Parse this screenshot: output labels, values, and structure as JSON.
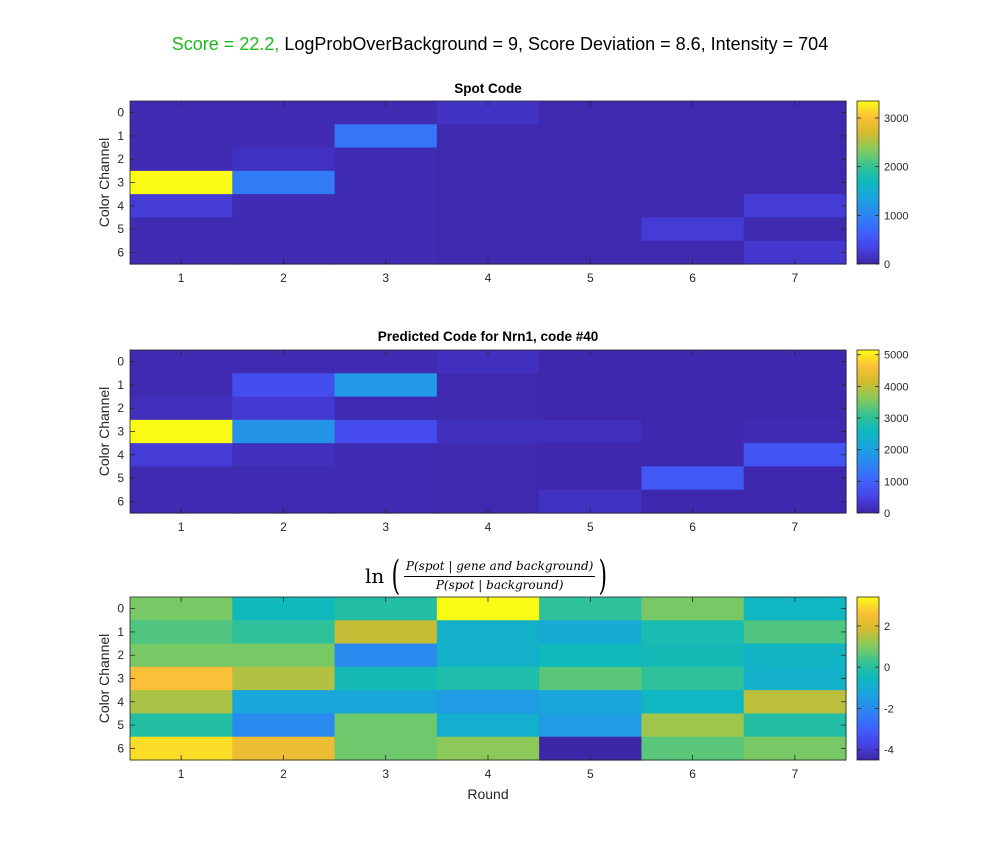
{
  "figure": {
    "score_text": "Score = 22.2,",
    "rest_text": "LogProbOverBackground = 9, Score Deviation = 8.6, Intensity = 704",
    "score_color": "#1db91d",
    "formula": {
      "prefix": "ln",
      "numerator": "P(spot | gene and background)",
      "denominator": "P(spot | background)"
    }
  },
  "chart_data": [
    {
      "type": "heatmap",
      "title": "Spot Code",
      "ylabel": "Color Channel",
      "xlabel": "",
      "x_ticks": [
        "1",
        "2",
        "3",
        "4",
        "5",
        "6",
        "7"
      ],
      "y_ticks": [
        "0",
        "1",
        "2",
        "3",
        "4",
        "5",
        "6"
      ],
      "colormap": "parula",
      "clim": [
        0,
        3350
      ],
      "colorbar_ticks": [
        0,
        1000,
        2000,
        3000
      ],
      "values": [
        [
          60,
          60,
          60,
          150,
          30,
          30,
          30
        ],
        [
          60,
          60,
          850,
          30,
          30,
          30,
          30
        ],
        [
          60,
          130,
          60,
          30,
          30,
          30,
          30
        ],
        [
          3350,
          900,
          60,
          30,
          30,
          30,
          30
        ],
        [
          250,
          60,
          60,
          30,
          30,
          30,
          250
        ],
        [
          60,
          60,
          60,
          30,
          30,
          250,
          30
        ],
        [
          60,
          60,
          60,
          30,
          30,
          30,
          200
        ]
      ]
    },
    {
      "type": "heatmap",
      "title": "Predicted Code for Nrn1, code #40",
      "ylabel": "Color Channel",
      "xlabel": "",
      "x_ticks": [
        "1",
        "2",
        "3",
        "4",
        "5",
        "6",
        "7"
      ],
      "y_ticks": [
        "0",
        "1",
        "2",
        "3",
        "4",
        "5",
        "6"
      ],
      "colormap": "parula",
      "clim": [
        0,
        5150
      ],
      "colorbar_ticks": [
        0,
        1000,
        2000,
        3000,
        4000,
        5000
      ],
      "values": [
        [
          80,
          80,
          80,
          180,
          40,
          40,
          40
        ],
        [
          80,
          700,
          1900,
          60,
          40,
          40,
          40
        ],
        [
          150,
          350,
          80,
          60,
          40,
          40,
          40
        ],
        [
          5150,
          1800,
          650,
          180,
          160,
          40,
          80
        ],
        [
          380,
          170,
          80,
          60,
          40,
          40,
          800
        ],
        [
          80,
          80,
          80,
          60,
          40,
          850,
          40
        ],
        [
          80,
          80,
          80,
          60,
          200,
          40,
          40
        ]
      ]
    },
    {
      "type": "heatmap",
      "title": "ln( P(spot | gene and background) / P(spot | background) )",
      "ylabel": "Color Channel",
      "xlabel": "Round",
      "x_ticks": [
        "1",
        "2",
        "3",
        "4",
        "5",
        "6",
        "7"
      ],
      "y_ticks": [
        "0",
        "1",
        "2",
        "3",
        "4",
        "5",
        "6"
      ],
      "colormap": "parula",
      "clim": [
        -4.5,
        3.4
      ],
      "colorbar_ticks": [
        -4,
        -2,
        0,
        2
      ],
      "values": [
        [
          0.9,
          -0.5,
          -0.1,
          3.4,
          0.1,
          0.9,
          -0.6
        ],
        [
          0.5,
          0.1,
          1.7,
          -0.8,
          -1.0,
          -0.3,
          0.5
        ],
        [
          0.9,
          0.9,
          -2.0,
          -0.8,
          -0.5,
          -0.4,
          -0.7
        ],
        [
          2.6,
          1.5,
          -0.4,
          -0.2,
          0.6,
          0.1,
          -0.8
        ],
        [
          1.4,
          -1.2,
          -1.2,
          -1.5,
          -1.2,
          -0.6,
          1.6
        ],
        [
          -0.1,
          -2.0,
          0.8,
          -0.9,
          -1.5,
          1.3,
          -0.1
        ],
        [
          3.0,
          2.3,
          0.8,
          1.1,
          -4.5,
          0.6,
          0.9
        ]
      ]
    }
  ]
}
